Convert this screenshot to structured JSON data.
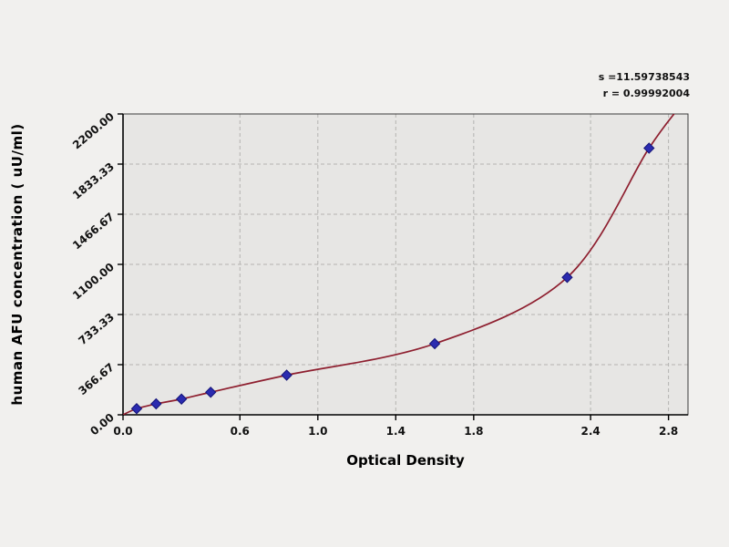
{
  "figure": {
    "background": "#f1f0ee",
    "plot_background": "#e7e6e4",
    "grid_color": "#b4b3b1",
    "frame_color": "#3a3a3a",
    "axis_color": "#000000",
    "curve_color": "#8e1f2f",
    "point_color": "#2b2bb0",
    "point_edge": "#141478"
  },
  "annotations": {
    "line1": "s =11.59738543",
    "line2": "r = 0.99992004"
  },
  "chart_data": {
    "type": "scatter",
    "title": "",
    "xlabel": "Optical Density",
    "ylabel": "human AFU concentration ( uU/ml)",
    "xlim": [
      0,
      2.9
    ],
    "ylim": [
      0,
      2200
    ],
    "x_ticks": [
      0.0,
      0.6,
      1.0,
      1.4,
      1.8,
      2.4,
      2.8
    ],
    "x_tick_labels": [
      "0.0",
      "0.6",
      "1.0",
      "1.4",
      "1.8",
      "2.4",
      "2.8"
    ],
    "y_ticks": [
      0,
      366.67,
      733.33,
      1100,
      1466.67,
      1833.33,
      2200
    ],
    "y_tick_labels": [
      "0.00",
      "366.67",
      "733.33",
      "1100.00",
      "1466.67",
      "1833.33",
      "2200.00"
    ],
    "grid": "dashed",
    "legend_position": "none",
    "series": [
      {
        "name": "standard-points",
        "marker": "diamond",
        "points": [
          [
            0.07,
            45
          ],
          [
            0.17,
            80
          ],
          [
            0.3,
            115
          ],
          [
            0.45,
            165
          ],
          [
            0.84,
            290
          ],
          [
            1.6,
            520
          ],
          [
            2.28,
            1005
          ],
          [
            2.7,
            1950
          ]
        ]
      }
    ],
    "fit_curve": {
      "name": "regression-fit",
      "start": [
        0.0,
        0
      ],
      "end": [
        2.88,
        2290
      ]
    }
  }
}
